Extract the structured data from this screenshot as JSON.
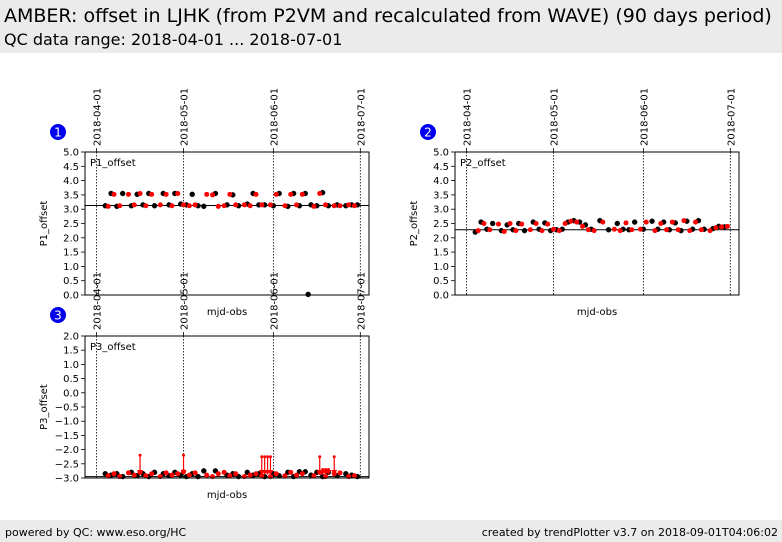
{
  "header": {
    "title": "AMBER: offset in LJHK (from P2VM and recalculated from WAVE) (90 days period)",
    "subtitle": "QC data range: 2018-04-01 ... 2018-07-01"
  },
  "footer": {
    "left": "powered by QC: www.eso.org/HC",
    "right": "created by trendPlotter v3.7 on 2018-09-01T04:06:02"
  },
  "colors": {
    "point": "#000000",
    "point2": "#ff0000",
    "badge": "#0000ee",
    "header_bg": "#ebebeb"
  },
  "chart_data": [
    {
      "type": "scatter",
      "badge": "1",
      "panel_label": "P1_offset",
      "xlabel": "mjd-obs",
      "ylabel": "P1_offset",
      "x_ticks": [
        "2018-04-01",
        "2018-05-01",
        "2018-06-01",
        "2018-07-01"
      ],
      "ylim": [
        0.0,
        5.0
      ],
      "y_ticks": [
        "0.0",
        "0.5",
        "1.0",
        "1.5",
        "2.0",
        "2.5",
        "3.0",
        "3.5",
        "4.0",
        "4.5",
        "5.0"
      ],
      "reference_line": 3.13,
      "series": [
        {
          "color": "#000000",
          "x": [
            "2018-04-04",
            "2018-04-06",
            "2018-04-08",
            "2018-04-10",
            "2018-04-13",
            "2018-04-15",
            "2018-04-17",
            "2018-04-19",
            "2018-04-21",
            "2018-04-24",
            "2018-04-26",
            "2018-04-28",
            "2018-04-30",
            "2018-05-02",
            "2018-05-04",
            "2018-05-06",
            "2018-05-08",
            "2018-05-12",
            "2018-05-16",
            "2018-05-18",
            "2018-05-20",
            "2018-05-23",
            "2018-05-25",
            "2018-05-27",
            "2018-05-29",
            "2018-06-01",
            "2018-06-03",
            "2018-06-06",
            "2018-06-08",
            "2018-06-10",
            "2018-06-12",
            "2018-06-14",
            "2018-06-16",
            "2018-06-18",
            "2018-06-20",
            "2018-06-23",
            "2018-06-26",
            "2018-06-28",
            "2018-06-30",
            "2018-06-13"
          ],
          "y": [
            3.12,
            3.55,
            3.1,
            3.55,
            3.12,
            3.52,
            3.15,
            3.55,
            3.12,
            3.55,
            3.15,
            3.55,
            3.18,
            3.15,
            3.52,
            3.12,
            3.1,
            3.55,
            3.15,
            3.5,
            3.12,
            3.18,
            3.55,
            3.15,
            3.15,
            3.12,
            3.55,
            3.1,
            3.55,
            3.12,
            3.55,
            3.15,
            3.12,
            3.58,
            3.12,
            3.15,
            3.12,
            3.15,
            3.15,
            0.02
          ]
        },
        {
          "color": "#ff0000",
          "x": [
            "2018-04-05",
            "2018-04-07",
            "2018-04-09",
            "2018-04-12",
            "2018-04-14",
            "2018-04-16",
            "2018-04-18",
            "2018-04-20",
            "2018-04-23",
            "2018-04-25",
            "2018-04-27",
            "2018-04-29",
            "2018-05-01",
            "2018-05-03",
            "2018-05-05",
            "2018-05-09",
            "2018-05-11",
            "2018-05-13",
            "2018-05-15",
            "2018-05-17",
            "2018-05-19",
            "2018-05-22",
            "2018-05-24",
            "2018-05-26",
            "2018-05-28",
            "2018-05-31",
            "2018-06-02",
            "2018-06-05",
            "2018-06-07",
            "2018-06-09",
            "2018-06-11",
            "2018-06-15",
            "2018-06-17",
            "2018-06-19",
            "2018-06-22",
            "2018-06-24",
            "2018-06-27",
            "2018-06-29"
          ],
          "y": [
            3.1,
            3.52,
            3.12,
            3.52,
            3.15,
            3.55,
            3.12,
            3.52,
            3.15,
            3.52,
            3.12,
            3.55,
            3.15,
            3.12,
            3.15,
            3.52,
            3.5,
            3.1,
            3.12,
            3.52,
            3.15,
            3.15,
            3.12,
            3.52,
            3.15,
            3.15,
            3.52,
            3.12,
            3.52,
            3.15,
            3.52,
            3.1,
            3.55,
            3.15,
            3.12,
            3.12,
            3.15,
            3.12
          ]
        }
      ]
    },
    {
      "type": "scatter",
      "badge": "2",
      "panel_label": "P2_offset",
      "xlabel": "mjd-obs",
      "ylabel": "P2_offset",
      "x_ticks": [
        "2018-04-01",
        "2018-05-01",
        "2018-06-01",
        "2018-07-01"
      ],
      "ylim": [
        0.0,
        5.0
      ],
      "y_ticks": [
        "0.0",
        "0.5",
        "1.0",
        "1.5",
        "2.0",
        "2.5",
        "3.0",
        "3.5",
        "4.0",
        "4.5",
        "5.0"
      ],
      "reference_line": 2.28,
      "series": [
        {
          "color": "#000000",
          "x": [
            "2018-04-04",
            "2018-04-06",
            "2018-04-08",
            "2018-04-10",
            "2018-04-13",
            "2018-04-15",
            "2018-04-17",
            "2018-04-19",
            "2018-04-21",
            "2018-04-24",
            "2018-04-26",
            "2018-04-28",
            "2018-04-30",
            "2018-05-02",
            "2018-05-04",
            "2018-05-06",
            "2018-05-08",
            "2018-05-10",
            "2018-05-12",
            "2018-05-14",
            "2018-05-17",
            "2018-05-20",
            "2018-05-23",
            "2018-05-25",
            "2018-05-27",
            "2018-05-29",
            "2018-06-01",
            "2018-06-04",
            "2018-06-06",
            "2018-06-08",
            "2018-06-10",
            "2018-06-12",
            "2018-06-14",
            "2018-06-16",
            "2018-06-18",
            "2018-06-20",
            "2018-06-22",
            "2018-06-25",
            "2018-06-27",
            "2018-06-29"
          ],
          "y": [
            2.2,
            2.55,
            2.3,
            2.5,
            2.25,
            2.45,
            2.28,
            2.5,
            2.25,
            2.55,
            2.3,
            2.52,
            2.25,
            2.28,
            2.3,
            2.55,
            2.6,
            2.55,
            2.45,
            2.3,
            2.6,
            2.28,
            2.5,
            2.3,
            2.28,
            2.55,
            2.3,
            2.58,
            2.3,
            2.55,
            2.28,
            2.52,
            2.25,
            2.58,
            2.3,
            2.6,
            2.3,
            2.32,
            2.4,
            2.38
          ]
        },
        {
          "color": "#ff0000",
          "x": [
            "2018-04-05",
            "2018-04-07",
            "2018-04-09",
            "2018-04-12",
            "2018-04-14",
            "2018-04-16",
            "2018-04-18",
            "2018-04-20",
            "2018-04-23",
            "2018-04-25",
            "2018-04-27",
            "2018-04-29",
            "2018-05-01",
            "2018-05-03",
            "2018-05-05",
            "2018-05-07",
            "2018-05-09",
            "2018-05-11",
            "2018-05-13",
            "2018-05-15",
            "2018-05-18",
            "2018-05-22",
            "2018-05-24",
            "2018-05-26",
            "2018-05-28",
            "2018-05-31",
            "2018-06-02",
            "2018-06-05",
            "2018-06-07",
            "2018-06-09",
            "2018-06-11",
            "2018-06-13",
            "2018-06-15",
            "2018-06-17",
            "2018-06-19",
            "2018-06-21",
            "2018-06-24",
            "2018-06-26",
            "2018-06-28",
            "2018-06-30"
          ],
          "y": [
            2.25,
            2.5,
            2.28,
            2.48,
            2.22,
            2.5,
            2.25,
            2.48,
            2.28,
            2.5,
            2.25,
            2.48,
            2.3,
            2.25,
            2.5,
            2.58,
            2.55,
            2.4,
            2.28,
            2.25,
            2.55,
            2.3,
            2.25,
            2.52,
            2.28,
            2.3,
            2.55,
            2.25,
            2.5,
            2.28,
            2.55,
            2.28,
            2.6,
            2.25,
            2.55,
            2.28,
            2.25,
            2.35,
            2.38,
            2.4
          ]
        }
      ]
    },
    {
      "type": "scatter",
      "badge": "3",
      "panel_label": "P3_offset",
      "xlabel": "mjd-obs",
      "ylabel": "P3_offset",
      "x_ticks": [
        "2018-04-01",
        "2018-05-01",
        "2018-06-01",
        "2018-07-01"
      ],
      "ylim": [
        -3.0,
        2.0
      ],
      "y_ticks": [
        "−3.0",
        "−2.5",
        "−2.0",
        "−1.5",
        "−1.0",
        "−0.5",
        "0.0",
        "0.5",
        "1.0",
        "1.5",
        "2.0"
      ],
      "reference_line": -2.95,
      "series": [
        {
          "color": "#000000",
          "x": [
            "2018-04-04",
            "2018-04-06",
            "2018-04-08",
            "2018-04-10",
            "2018-04-13",
            "2018-04-15",
            "2018-04-17",
            "2018-04-19",
            "2018-04-21",
            "2018-04-24",
            "2018-04-26",
            "2018-04-28",
            "2018-04-30",
            "2018-05-02",
            "2018-05-04",
            "2018-05-06",
            "2018-05-08",
            "2018-05-12",
            "2018-05-16",
            "2018-05-18",
            "2018-05-20",
            "2018-05-23",
            "2018-05-25",
            "2018-05-27",
            "2018-05-29",
            "2018-06-01",
            "2018-06-03",
            "2018-06-06",
            "2018-06-08",
            "2018-06-10",
            "2018-06-12",
            "2018-06-14",
            "2018-06-16",
            "2018-06-18",
            "2018-06-20",
            "2018-06-23",
            "2018-06-26",
            "2018-06-28",
            "2018-06-30"
          ],
          "y": [
            -2.85,
            -2.9,
            -2.85,
            -2.95,
            -2.8,
            -2.92,
            -2.85,
            -2.95,
            -2.8,
            -2.85,
            -2.92,
            -2.8,
            -2.9,
            -2.95,
            -2.85,
            -2.95,
            -2.75,
            -2.75,
            -2.9,
            -2.85,
            -2.95,
            -2.8,
            -2.9,
            -2.85,
            -2.95,
            -2.85,
            -2.92,
            -2.8,
            -2.95,
            -2.78,
            -2.78,
            -2.9,
            -2.8,
            -2.95,
            -2.8,
            -2.92,
            -2.85,
            -2.9,
            -2.95
          ]
        },
        {
          "color": "#ff0000",
          "x": [
            "2018-04-05",
            "2018-04-07",
            "2018-04-09",
            "2018-04-12",
            "2018-04-14",
            "2018-04-16",
            "2018-04-18",
            "2018-04-20",
            "2018-04-23",
            "2018-04-25",
            "2018-04-27",
            "2018-04-29",
            "2018-05-01",
            "2018-05-03",
            "2018-05-05",
            "2018-05-09",
            "2018-05-11",
            "2018-05-13",
            "2018-05-15",
            "2018-05-17",
            "2018-05-19",
            "2018-05-22",
            "2018-05-24",
            "2018-05-26",
            "2018-05-28",
            "2018-05-31",
            "2018-06-02",
            "2018-06-05",
            "2018-06-07",
            "2018-06-09",
            "2018-06-11",
            "2018-06-15",
            "2018-06-17",
            "2018-06-19",
            "2018-06-22",
            "2018-06-24",
            "2018-06-27",
            "2018-06-29"
          ],
          "y": [
            -2.92,
            -2.85,
            -2.95,
            -2.82,
            -2.9,
            -2.8,
            -2.92,
            -2.85,
            -2.95,
            -2.82,
            -2.9,
            -2.85,
            -2.78,
            -2.9,
            -2.82,
            -2.9,
            -2.95,
            -2.85,
            -2.8,
            -2.92,
            -2.85,
            -2.95,
            -2.9,
            -2.85,
            -2.92,
            -2.95,
            -2.85,
            -2.92,
            -2.8,
            -2.9,
            -2.85,
            -2.92,
            -2.8,
            -2.95,
            -2.85,
            -2.82,
            -2.95,
            -2.92
          ]
        }
      ],
      "outliers_below_axis": {
        "color": "#ff0000",
        "x": [
          "2018-04-16",
          "2018-05-01",
          "2018-05-28",
          "2018-05-29",
          "2018-05-30",
          "2018-05-31",
          "2018-06-17",
          "2018-06-18",
          "2018-06-19",
          "2018-06-20",
          "2018-06-22"
        ],
        "top_value": [
          -2.2,
          -2.2,
          -2.25,
          -2.25,
          -2.25,
          -2.25,
          -2.25,
          -2.7,
          -2.7,
          -2.7,
          -2.25
        ]
      }
    }
  ]
}
